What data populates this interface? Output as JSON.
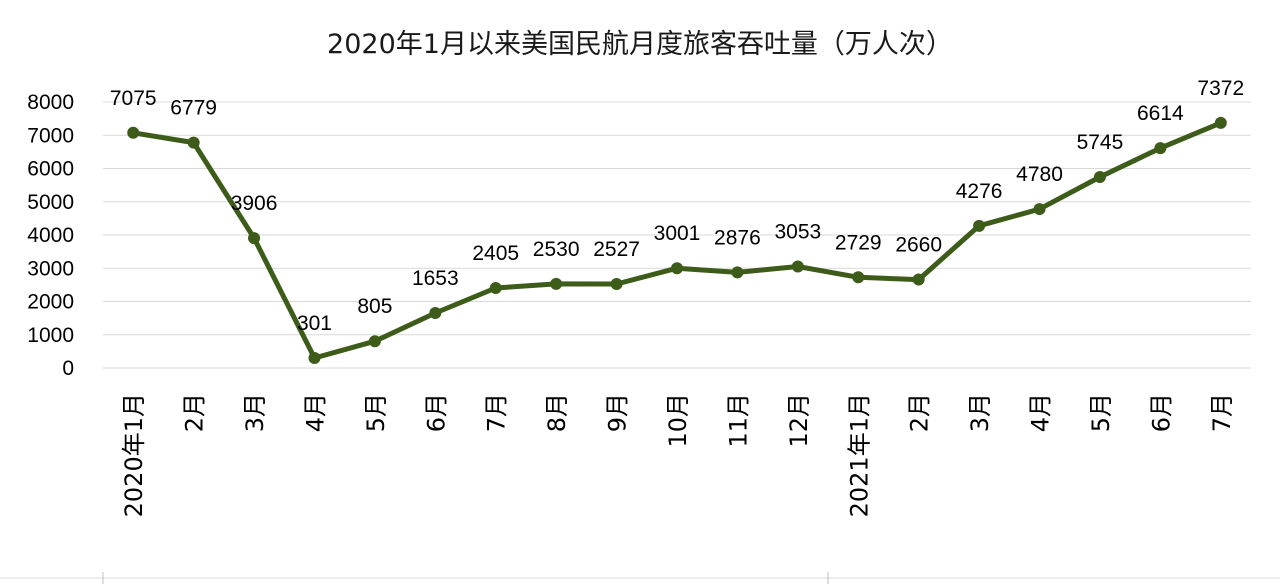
{
  "chart_data": {
    "type": "line",
    "title": "2020年1月以来美国民航月度旅客吞吐量（万人次）",
    "categories": [
      "2020年1月",
      "2月",
      "3月",
      "4月",
      "5月",
      "6月",
      "7月",
      "8月",
      "9月",
      "10月",
      "11月",
      "12月",
      "2021年1月",
      "2月",
      "3月",
      "4月",
      "5月",
      "6月",
      "7月"
    ],
    "series": [
      {
        "values": [
          7075,
          6779,
          3906,
          301,
          805,
          1653,
          2405,
          2530,
          2527,
          3001,
          2876,
          3053,
          2729,
          2660,
          4276,
          4780,
          5745,
          6614,
          7372
        ]
      }
    ],
    "ylim": [
      0,
      8000
    ],
    "yticks": [
      "0",
      "1000",
      "2000",
      "3000",
      "4000",
      "5000",
      "6000",
      "7000",
      "8000"
    ],
    "grid": true,
    "legend": "none",
    "line_color": "#3d5c1a",
    "grid_color": "#d9d9d9"
  }
}
